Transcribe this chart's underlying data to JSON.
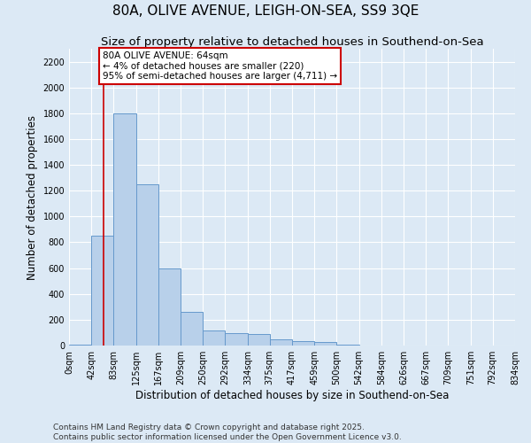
{
  "title": "80A, OLIVE AVENUE, LEIGH-ON-SEA, SS9 3QE",
  "subtitle": "Size of property relative to detached houses in Southend-on-Sea",
  "xlabel": "Distribution of detached houses by size in Southend-on-Sea",
  "ylabel": "Number of detached properties",
  "footer": "Contains HM Land Registry data © Crown copyright and database right 2025.\nContains public sector information licensed under the Open Government Licence v3.0.",
  "bin_edges": [
    0,
    42,
    83,
    125,
    167,
    209,
    250,
    292,
    334,
    375,
    417,
    459,
    500,
    542,
    584,
    626,
    667,
    709,
    751,
    792,
    834
  ],
  "bar_heights": [
    5,
    850,
    1800,
    1250,
    600,
    260,
    120,
    95,
    90,
    50,
    35,
    30,
    10,
    2,
    0,
    0,
    0,
    0,
    0,
    0
  ],
  "bar_color": "#b8d0ea",
  "bar_edge_color": "#6699cc",
  "reference_line_x": 64,
  "reference_line_color": "#cc0000",
  "annotation_text": "80A OLIVE AVENUE: 64sqm\n← 4% of detached houses are smaller (220)\n95% of semi-detached houses are larger (4,711) →",
  "annotation_box_color": "#ffffff",
  "annotation_box_edge_color": "#cc0000",
  "ylim": [
    0,
    2300
  ],
  "yticks": [
    0,
    200,
    400,
    600,
    800,
    1000,
    1200,
    1400,
    1600,
    1800,
    2000,
    2200
  ],
  "background_color": "#dce9f5",
  "plot_background_color": "#dce9f5",
  "grid_color": "#ffffff",
  "title_fontsize": 11,
  "subtitle_fontsize": 9.5,
  "tick_label_fontsize": 7,
  "axis_label_fontsize": 8.5,
  "footer_fontsize": 6.5
}
